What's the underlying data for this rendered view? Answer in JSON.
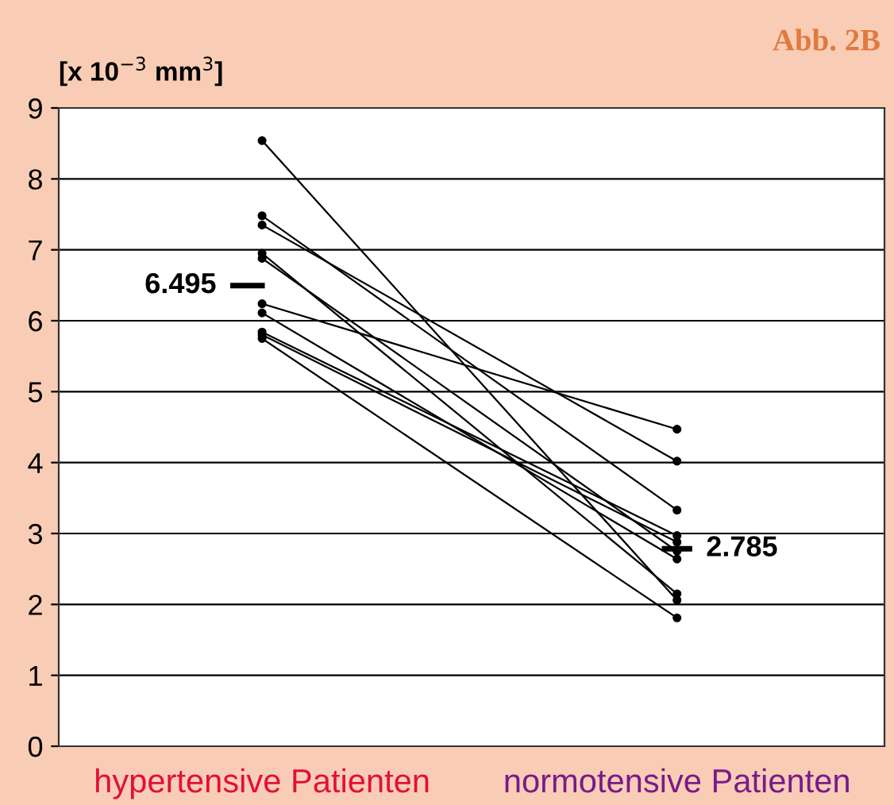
{
  "chart_data": {
    "type": "line",
    "title": "Abb. 2B",
    "ylabel": "[x 10$^{−3}$ mm$^{3}$]",
    "categories": [
      "hypertensive Patienten",
      "normotensive Patienten"
    ],
    "series": [
      {
        "color": "#000000",
        "values": [
          8.54,
          2.06
        ]
      },
      {
        "color": "#000000",
        "values": [
          7.48,
          3.33
        ]
      },
      {
        "color": "#000000",
        "values": [
          7.35,
          4.02
        ]
      },
      {
        "color": "#000000",
        "values": [
          6.95,
          2.15
        ]
      },
      {
        "color": "#000000",
        "values": [
          6.88,
          2.75
        ]
      },
      {
        "color": "#000000",
        "values": [
          6.24,
          4.47
        ]
      },
      {
        "color": "#000000",
        "values": [
          6.11,
          2.64
        ]
      },
      {
        "color": "#000000",
        "values": [
          5.84,
          2.97
        ]
      },
      {
        "color": "#000000",
        "values": [
          5.8,
          2.88
        ]
      },
      {
        "color": "#000000",
        "values": [
          5.75,
          1.81
        ]
      }
    ],
    "ref_lines": [
      {
        "axis": "y",
        "value": 6.495,
        "label": "6.495",
        "color": "#000000"
      },
      {
        "axis": "y",
        "value": 2.785,
        "label": "2.785",
        "color": "#000000"
      }
    ],
    "ylim": [
      0,
      9
    ],
    "yticks": [
      0,
      1,
      2,
      3,
      4,
      5,
      6,
      7,
      8,
      9
    ],
    "grid": "y",
    "marker": "circle",
    "line_style": "solid"
  }
}
